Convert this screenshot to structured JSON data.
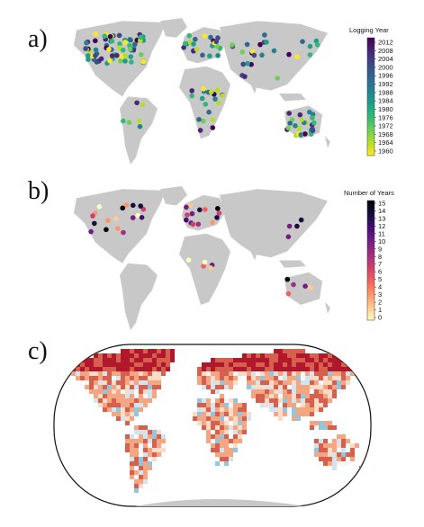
{
  "panels": [
    {
      "label": "a)",
      "legend": {
        "title": "Logging Year",
        "ticks": [
          "2012",
          "2008",
          "2004",
          "2000",
          "1996",
          "1992",
          "1988",
          "1984",
          "1980",
          "1976",
          "1972",
          "1968",
          "1964",
          "1960"
        ],
        "colormap": [
          "#fde725",
          "#b5de2b",
          "#6ece58",
          "#35b779",
          "#1f9e89",
          "#26828e",
          "#31688e",
          "#3e4989",
          "#482878",
          "#440154"
        ]
      }
    },
    {
      "label": "b)",
      "legend": {
        "title": "Number of Years",
        "ticks": [
          "15",
          "14",
          "13",
          "12",
          "11",
          "10",
          "9",
          "8",
          "7",
          "6",
          "5",
          "4",
          "3",
          "2",
          "1",
          "0"
        ],
        "colormap": [
          "#fcfdbf",
          "#feca8d",
          "#fd9668",
          "#f1605d",
          "#cd4071",
          "#9e2f7f",
          "#721f81",
          "#440f76",
          "#180f3d",
          "#000004"
        ]
      }
    },
    {
      "label": "c)",
      "colormap": [
        "#b2182b",
        "#d6604d",
        "#f4a582",
        "#fddbc7",
        "#f7f7f7",
        "#d1e5f0",
        "#92c5de",
        "#4393c3",
        "#2166ac"
      ]
    }
  ]
}
